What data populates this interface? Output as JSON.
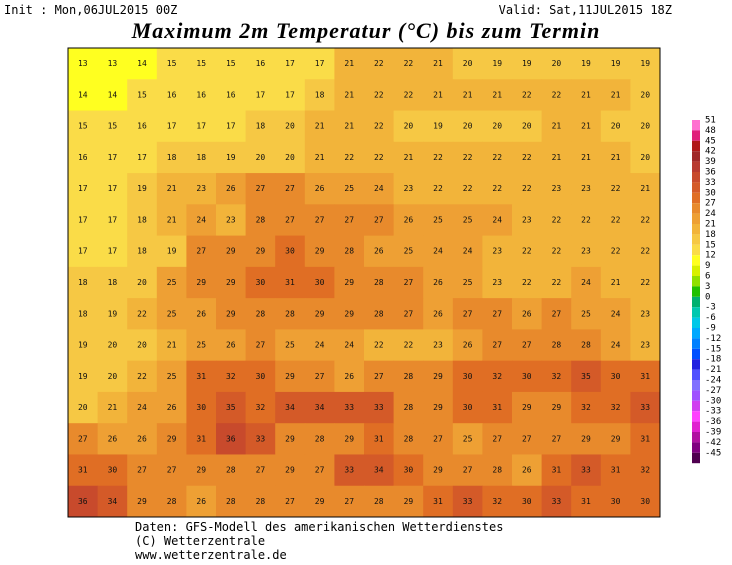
{
  "header": {
    "init": "Init : Mon,06JUL2015 00Z",
    "valid": "Valid: Sat,11JUL2015 18Z",
    "title": "Maximum 2m Temperatur (°C) bis zum Termin"
  },
  "map": {
    "values": [
      [
        13,
        13,
        14,
        15,
        15,
        15,
        16,
        17,
        17,
        21,
        22,
        22,
        21,
        20,
        19,
        19,
        20,
        19,
        19,
        19
      ],
      [
        14,
        14,
        15,
        16,
        16,
        16,
        17,
        17,
        18,
        21,
        22,
        22,
        21,
        21,
        21,
        22,
        22,
        21,
        21,
        20
      ],
      [
        15,
        15,
        16,
        17,
        17,
        17,
        18,
        20,
        21,
        21,
        22,
        20,
        19,
        20,
        20,
        20,
        21,
        21,
        20,
        20
      ],
      [
        16,
        17,
        17,
        18,
        18,
        19,
        20,
        20,
        21,
        22,
        22,
        21,
        22,
        22,
        22,
        22,
        21,
        21,
        21,
        20
      ],
      [
        17,
        17,
        19,
        21,
        23,
        26,
        27,
        27,
        26,
        25,
        24,
        23,
        22,
        22,
        22,
        22,
        23,
        23,
        22,
        21
      ],
      [
        17,
        17,
        18,
        21,
        24,
        23,
        28,
        27,
        27,
        27,
        27,
        26,
        25,
        25,
        24,
        23,
        22,
        22,
        22,
        22
      ],
      [
        17,
        17,
        18,
        19,
        27,
        29,
        29,
        30,
        29,
        28,
        26,
        25,
        24,
        24,
        23,
        22,
        22,
        23,
        22,
        22
      ],
      [
        18,
        18,
        20,
        25,
        29,
        29,
        30,
        31,
        30,
        29,
        28,
        27,
        26,
        25,
        23,
        22,
        22,
        24,
        21,
        22
      ],
      [
        18,
        19,
        22,
        25,
        26,
        29,
        28,
        28,
        29,
        29,
        28,
        27,
        26,
        27,
        27,
        26,
        27,
        25,
        24,
        23
      ],
      [
        19,
        20,
        20,
        21,
        25,
        26,
        27,
        25,
        24,
        24,
        22,
        22,
        23,
        26,
        27,
        27,
        28,
        28,
        24,
        23
      ],
      [
        19,
        20,
        22,
        25,
        31,
        32,
        30,
        29,
        27,
        26,
        27,
        28,
        29,
        30,
        32,
        30,
        32,
        35,
        30,
        31
      ],
      [
        20,
        21,
        24,
        26,
        30,
        35,
        32,
        34,
        34,
        33,
        33,
        28,
        29,
        30,
        31,
        29,
        29,
        32,
        32,
        33
      ],
      [
        27,
        26,
        26,
        29,
        31,
        36,
        33,
        29,
        28,
        29,
        31,
        28,
        27,
        25,
        27,
        27,
        27,
        29,
        29,
        31
      ],
      [
        31,
        30,
        27,
        27,
        29,
        28,
        27,
        29,
        27,
        33,
        34,
        30,
        29,
        27,
        28,
        26,
        31,
        33,
        31,
        32
      ],
      [
        36,
        34,
        29,
        28,
        26,
        28,
        28,
        27,
        29,
        27,
        28,
        29,
        31,
        33,
        32,
        30,
        33,
        31,
        30,
        30
      ]
    ]
  },
  "colorbar": {
    "ticks": [
      51,
      48,
      45,
      42,
      39,
      36,
      33,
      30,
      27,
      24,
      21,
      18,
      15,
      12,
      9,
      6,
      3,
      0,
      -3,
      -6,
      -9,
      -12,
      -15,
      -18,
      -21,
      -24,
      -27,
      -30,
      -33,
      -36,
      -39,
      -42,
      -45
    ],
    "colors": [
      "#ff70d0",
      "#e0207a",
      "#b01818",
      "#a02828",
      "#b83a30",
      "#c84a2c",
      "#d45a28",
      "#e06e24",
      "#e88a2c",
      "#eea034",
      "#f2b43a",
      "#f6c844",
      "#fadc48",
      "#ffff20",
      "#d8f000",
      "#90e000",
      "#20c000",
      "#00b070",
      "#00c8b0",
      "#00c8e8",
      "#00a8ff",
      "#0080ff",
      "#0050ff",
      "#2020e0",
      "#5050ff",
      "#8070ff",
      "#a050ff",
      "#d040f0",
      "#ff40ff",
      "#e020d0",
      "#b010a0",
      "#800080",
      "#500050"
    ]
  },
  "footer": {
    "line1": "Daten: GFS-Modell des amerikanischen Wetterdienstes",
    "line2": "(C) Wetterzentrale",
    "line3": "www.wetterzentrale.de"
  }
}
